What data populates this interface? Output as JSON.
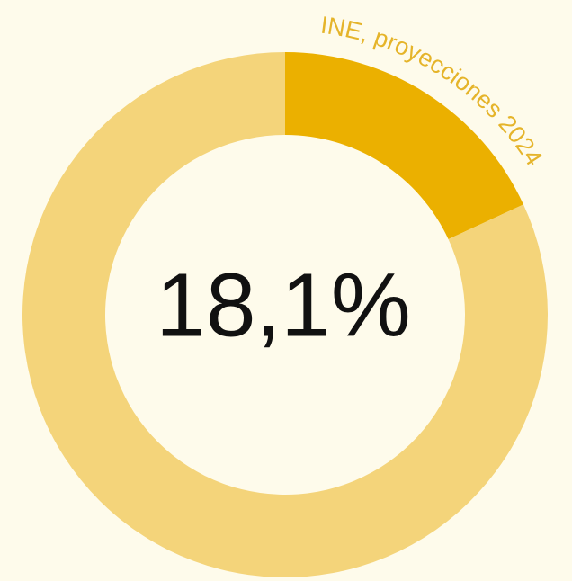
{
  "chart_data": {
    "type": "donut",
    "values": [
      18.1,
      81.9
    ],
    "value_labels": [
      "18,1%",
      null
    ],
    "colors": [
      "#ebb000",
      "#f4d47a"
    ],
    "source": "INE, proyecciones 2024"
  }
}
